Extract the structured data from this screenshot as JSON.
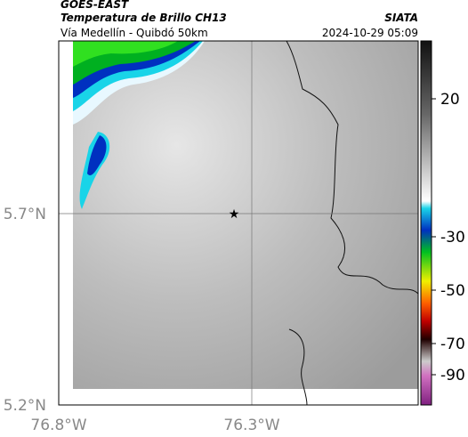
{
  "header": {
    "satellite": "GOES-EAST",
    "title": "Temperatura de Brillo CH13",
    "source": "SIATA",
    "route": "Vía Medellín - Quibdó 50km",
    "datetime": "2024-10-29 05:09"
  },
  "map": {
    "y_ticks": [
      "5.7°N",
      "5.2°N"
    ],
    "x_ticks": [
      "76.8°W",
      "76.3°W"
    ]
  },
  "colorbar": {
    "ticks": [
      "20",
      "-30",
      "-50",
      "-70",
      "-90"
    ]
  }
}
